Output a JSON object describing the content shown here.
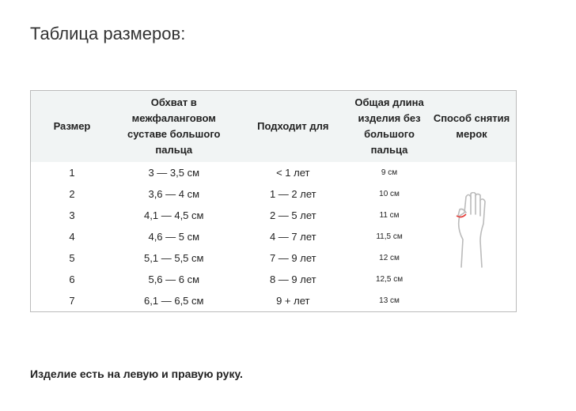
{
  "title": "Таблица размеров:",
  "table": {
    "headers": [
      "Размер",
      "Обхват в межфаланговом суставе большого пальца",
      "Подходит для",
      "Общая длина изделия без большого пальца",
      "Способ снятия мерок"
    ],
    "rows": [
      [
        "1",
        "3 — 3,5 см",
        "< 1 лет",
        "9 см"
      ],
      [
        "2",
        "3,6 — 4 см",
        "1 — 2 лет",
        "10 см"
      ],
      [
        "3",
        "4,1 — 4,5 см",
        "2 — 5 лет",
        "11 см"
      ],
      [
        "4",
        "4,6 — 5 см",
        "4 — 7 лет",
        "11,5 см"
      ],
      [
        "5",
        "5,1 — 5,5 см",
        "7 — 9 лет",
        "12 см"
      ],
      [
        "6",
        "5,6 — 6 см",
        "8 — 9 лет",
        "12,5 см"
      ],
      [
        "7",
        "6,1 — 6,5 см",
        "9 + лет",
        "13 см"
      ]
    ],
    "measure_icon": "hand-measure-icon",
    "accent_color": "#e53935"
  },
  "note": "Изделие есть на левую и правую руку."
}
